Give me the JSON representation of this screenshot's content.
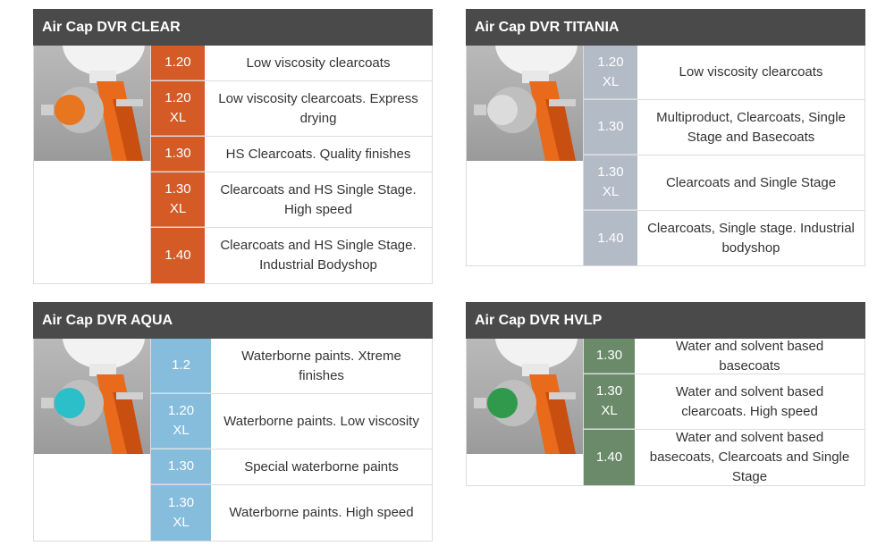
{
  "colors": {
    "header_bg": "#4a4a4a",
    "clear_accent": "#d45a26",
    "titania_accent": "#b3bcc6",
    "aqua_accent": "#86bddd",
    "hvlp_accent": "#6b8a6a"
  },
  "cards": [
    {
      "title": "Air Cap DVR CLEAR",
      "cap_color": "#e8761f",
      "rows": [
        {
          "code": "1.20",
          "desc": "Low viscosity clearcoats"
        },
        {
          "code": "1.20 XL",
          "desc": "Low viscosity clearcoats. Express drying"
        },
        {
          "code": "1.30",
          "desc": "HS Clearcoats. Quality finishes"
        },
        {
          "code": "1.30 XL",
          "desc": "Clearcoats and HS Single Stage. High speed"
        },
        {
          "code": "1.40",
          "desc": "Clearcoats and HS Single Stage. Industrial Bodyshop"
        }
      ]
    },
    {
      "title": "Air Cap DVR TITANIA",
      "cap_color": "#d8d8d8",
      "rows": [
        {
          "code": "1.20 XL",
          "desc": "Low viscosity clearcoats"
        },
        {
          "code": "1.30",
          "desc": "Multiproduct, Clearcoats, Single Stage and Basecoats"
        },
        {
          "code": "1.30 XL",
          "desc": "Clearcoats and Single Stage"
        },
        {
          "code": "1.40",
          "desc": "Clearcoats, Single stage. Industrial bodyshop"
        }
      ]
    },
    {
      "title": "Air Cap DVR AQUA",
      "cap_color": "#2bbfc9",
      "rows": [
        {
          "code": "1.2",
          "desc": "Waterborne paints. Xtreme finishes"
        },
        {
          "code": "1.20 XL",
          "desc": "Waterborne paints. Low viscosity"
        },
        {
          "code": "1.30",
          "desc": "Special waterborne paints"
        },
        {
          "code": "1.30 XL",
          "desc": "Waterborne paints. High speed"
        }
      ]
    },
    {
      "title": "Air Cap DVR HVLP",
      "cap_color": "#2f9a4c",
      "rows": [
        {
          "code": "1.30",
          "desc": "Water and solvent based basecoats"
        },
        {
          "code": "1.30 XL",
          "desc": "Water and solvent based clearcoats. High speed"
        },
        {
          "code": "1.40",
          "desc": "Water and solvent based basecoats, Clearcoats and Single Stage"
        }
      ]
    }
  ]
}
